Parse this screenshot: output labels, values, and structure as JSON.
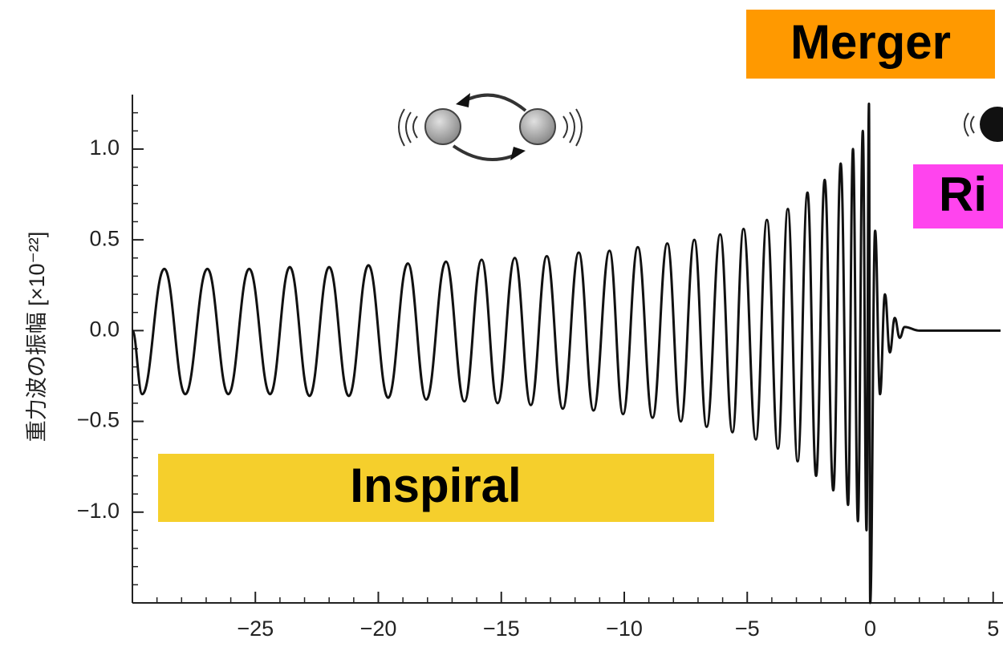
{
  "chart_data": {
    "type": "line",
    "ylabel": "重力波の振幅 [×10⁻²²]",
    "annotations": [
      "Merger",
      "Ri",
      "Inspiral"
    ],
    "color": "#111111",
    "x": [
      -30.0,
      -29.6,
      -28.7,
      -27.85,
      -26.95,
      -26.1,
      -25.25,
      -24.4,
      -23.6,
      -22.8,
      -22.0,
      -21.2,
      -20.4,
      -19.6,
      -18.8,
      -18.05,
      -17.25,
      -16.5,
      -15.8,
      -15.15,
      -14.45,
      -13.8,
      -13.15,
      -12.5,
      -11.85,
      -11.25,
      -10.6,
      -10.05,
      -9.45,
      -8.85,
      -8.25,
      -7.7,
      -7.15,
      -6.65,
      -6.1,
      -5.6,
      -5.15,
      -4.65,
      -4.2,
      -3.75,
      -3.35,
      -2.95,
      -2.55,
      -2.2,
      -1.85,
      -1.5,
      -1.2,
      -0.9,
      -0.7,
      -0.5,
      -0.3,
      -0.15,
      -0.05,
      0.0,
      0.2,
      0.4,
      0.6,
      0.8,
      1.0,
      1.2,
      1.4,
      2.0,
      5.3
    ],
    "values": [
      0.0,
      -0.35,
      0.34,
      -0.35,
      0.34,
      -0.35,
      0.34,
      -0.35,
      0.35,
      -0.36,
      0.35,
      -0.36,
      0.36,
      -0.37,
      0.37,
      -0.38,
      0.38,
      -0.39,
      0.39,
      -0.4,
      0.4,
      -0.41,
      0.41,
      -0.43,
      0.43,
      -0.44,
      0.44,
      -0.46,
      0.46,
      -0.48,
      0.48,
      -0.5,
      0.5,
      -0.53,
      0.53,
      -0.56,
      0.56,
      -0.6,
      0.61,
      -0.65,
      0.67,
      -0.72,
      0.76,
      -0.8,
      0.83,
      -0.88,
      0.92,
      -0.96,
      1.0,
      -1.05,
      1.1,
      -1.1,
      1.25,
      -1.5,
      0.55,
      -0.35,
      0.2,
      -0.12,
      0.07,
      -0.04,
      0.02,
      0.0,
      0.0
    ],
    "xlim": [
      -30,
      5.4
    ],
    "ylim": [
      -1.5,
      1.3
    ],
    "xticks": [
      {
        "value": -25,
        "label": "−25"
      },
      {
        "value": -20,
        "label": "−20"
      },
      {
        "value": -15,
        "label": "−15"
      },
      {
        "value": -10,
        "label": "−10"
      },
      {
        "value": -5,
        "label": "−5"
      },
      0,
      5
    ],
    "yticks": [
      {
        "value": -1.0,
        "label": "−1.0"
      },
      {
        "value": -0.5,
        "label": "−0.5"
      },
      {
        "value": 0.0,
        "label": "0.0"
      },
      0.5,
      {
        "value": 1.0,
        "label": "1.0"
      }
    ],
    "xminorticks": [
      -29,
      -28,
      -27,
      -26,
      -25,
      -24,
      -23,
      -22,
      -21,
      -20,
      -19,
      -18,
      -17,
      -16,
      -15,
      -14,
      -13,
      -12,
      -11,
      -10,
      -9,
      -8,
      -7,
      -6,
      -5,
      -4,
      -3,
      -2,
      -1,
      0,
      1,
      2,
      3,
      4,
      5
    ],
    "yminorticks": [
      -1.4,
      -1.3,
      -1.2,
      -1.1,
      -1.0,
      -0.9,
      -0.8,
      -0.7,
      -0.6,
      -0.5,
      -0.4,
      -0.3,
      -0.2,
      -0.1,
      0.0,
      0.1,
      0.2,
      0.3,
      0.4,
      0.5,
      0.6,
      0.7,
      0.8,
      0.9,
      1.0,
      1.1,
      1.2
    ]
  }
}
